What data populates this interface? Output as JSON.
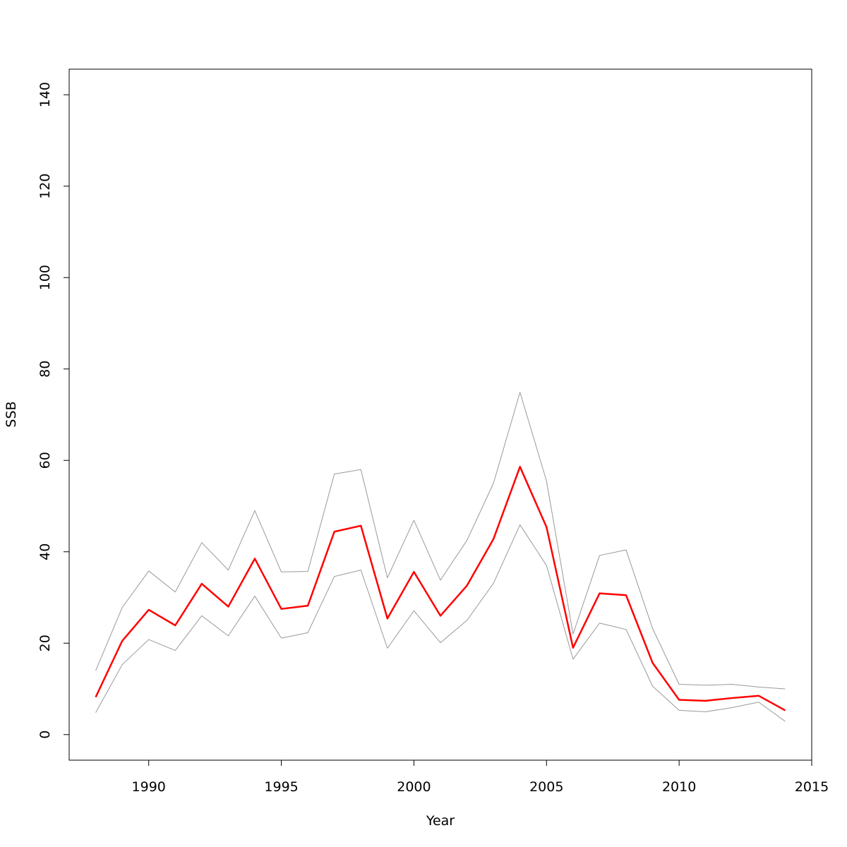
{
  "chart_data": {
    "type": "line",
    "title": "",
    "xlabel": "Year",
    "ylabel": "SSB",
    "xlim": [
      1987,
      2015
    ],
    "ylim": [
      -5.6,
      145.6
    ],
    "x_ticks": [
      1990,
      1995,
      2000,
      2005,
      2010,
      2015
    ],
    "y_ticks": [
      0,
      20,
      40,
      60,
      80,
      100,
      120,
      140
    ],
    "grid": false,
    "legend": "none",
    "x": [
      1988,
      1989,
      1990,
      1991,
      1992,
      1993,
      1994,
      1995,
      1996,
      1997,
      1998,
      1999,
      2000,
      2001,
      2002,
      2003,
      2004,
      2005,
      2006,
      2007,
      2008,
      2009,
      2010,
      2011,
      2012,
      2013,
      2014
    ],
    "series": [
      {
        "role": "upper",
        "color": "#999999",
        "values": [
          14.0,
          27.8,
          35.8,
          31.2,
          42.0,
          36.0,
          49.0,
          35.6,
          35.7,
          57.0,
          58.0,
          34.3,
          46.9,
          33.8,
          42.5,
          55.0,
          74.9,
          55.5,
          22.0,
          39.2,
          40.4,
          23.2,
          11.0,
          10.8,
          11.0,
          10.4,
          10.0
        ]
      },
      {
        "role": "estimate",
        "color": "#ff0000",
        "values": [
          8.2,
          20.5,
          27.3,
          23.9,
          33.0,
          28.0,
          38.5,
          27.5,
          28.2,
          44.4,
          45.7,
          25.4,
          35.6,
          26.0,
          32.6,
          42.8,
          58.6,
          45.4,
          19.0,
          30.9,
          30.5,
          15.7,
          7.6,
          7.4,
          8.0,
          8.5,
          5.3
        ]
      },
      {
        "role": "lower",
        "color": "#999999",
        "values": [
          4.8,
          15.3,
          20.8,
          18.4,
          26.0,
          21.6,
          30.3,
          21.1,
          22.3,
          34.6,
          36.0,
          18.9,
          27.1,
          20.1,
          25.0,
          33.1,
          45.9,
          37.0,
          16.5,
          24.4,
          23.0,
          10.6,
          5.3,
          5.0,
          5.9,
          7.1,
          2.9
        ]
      }
    ]
  }
}
